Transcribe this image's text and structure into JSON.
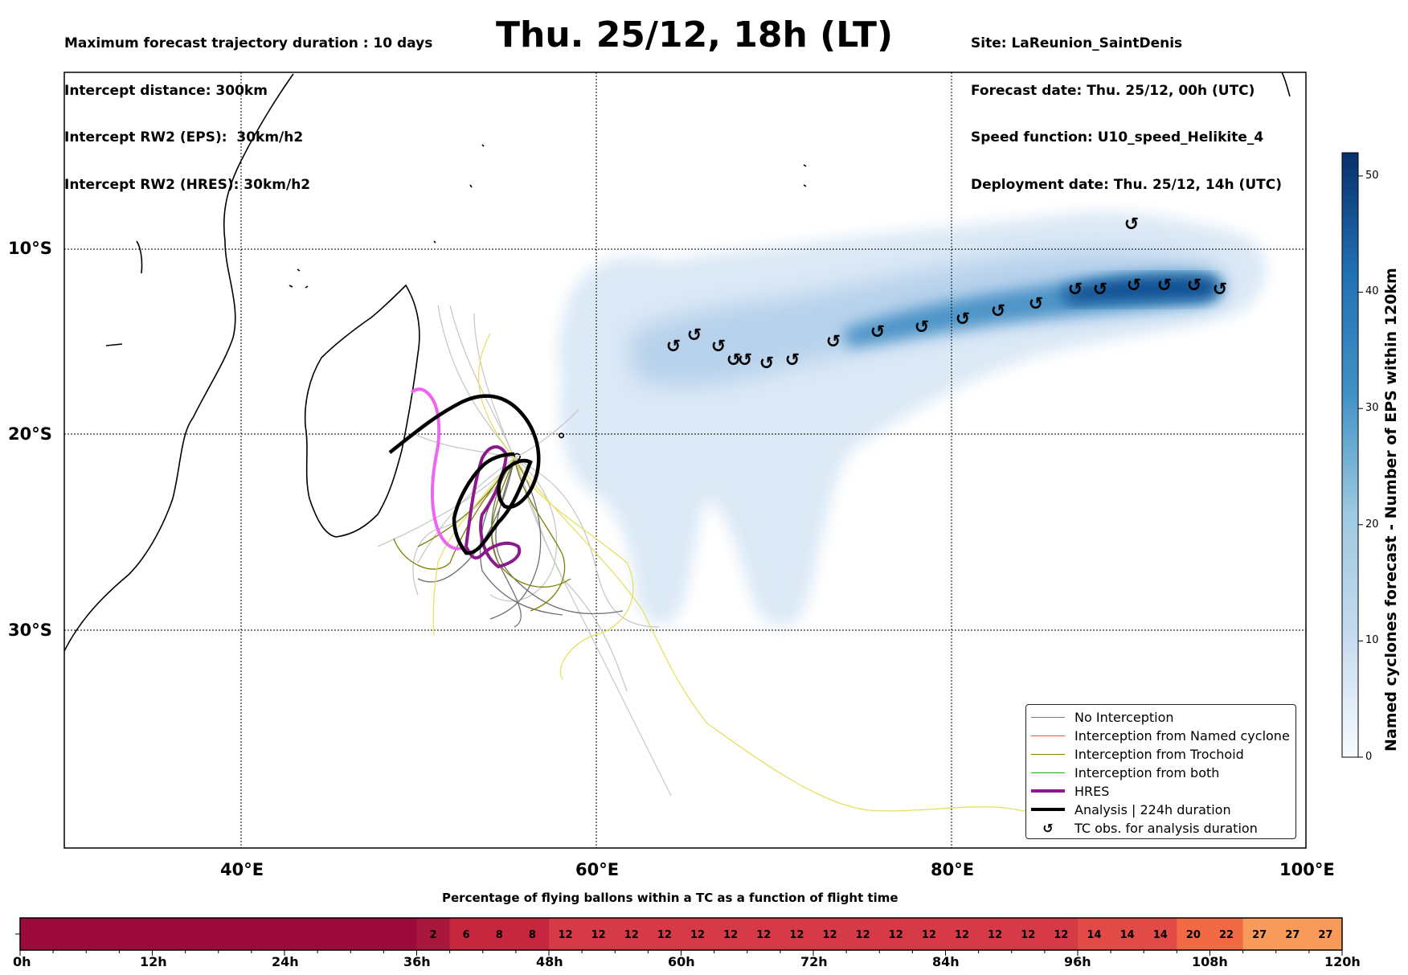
{
  "header": {
    "left_lines": [
      "Maximum forecast trajectory duration : 10 days",
      "Intercept distance: 300km",
      "Intercept RW2 (EPS):  30km/h2",
      "Intercept RW2 (HRES): 30km/h2"
    ],
    "title": "Thu. 25/12, 18h (LT)",
    "right_lines": [
      "Site: LaReunion_SaintDenis",
      "Forecast date: Thu. 25/12, 00h (UTC)",
      "Speed function: U10_speed_Helikite_4",
      "Deployment date: Thu. 25/12, 14h (UTC)"
    ]
  },
  "map": {
    "lat_labels": [
      "10°S",
      "20°S",
      "30°S"
    ],
    "lon_labels": [
      "40°E",
      "60°E",
      "80°E",
      "100°E"
    ],
    "colors": {
      "no_interception": "#808080",
      "named_cyclone": "#ff5522",
      "trochoid": "#808000",
      "both": "#22aa22",
      "hres": "#8b1a8b",
      "hres_early": "#ee66ee",
      "analysis": "#000000",
      "density_light": "#dbe8f5",
      "density_dark": "#08306b"
    }
  },
  "legend": {
    "items": [
      {
        "label": "No Interception",
        "color": "#808080",
        "style": "thin"
      },
      {
        "label": "Interception from Named cyclone",
        "color": "#ff5522",
        "style": "thin"
      },
      {
        "label": "Interception from Trochoid",
        "color": "#808000",
        "style": "thin"
      },
      {
        "label": "Interception from both",
        "color": "#22aa22",
        "style": "thin"
      },
      {
        "label": "HRES",
        "color": "#8b1a8b",
        "style": "thick"
      },
      {
        "label": "Analysis | 224h duration",
        "color": "#000000",
        "style": "thick"
      },
      {
        "label": "TC obs. for analysis duration",
        "color": "#000000",
        "style": "symbol",
        "symbol": "↺"
      }
    ]
  },
  "colorbar": {
    "title": "Named cyclones forecast - Number of EPS within 120km",
    "ticks": [
      "0",
      "10",
      "20",
      "30",
      "40",
      "50"
    ],
    "max": 52
  },
  "timeline": {
    "title": "Percentage of flying ballons within a TC as a function of flight time",
    "tick_labels": [
      "0h",
      "12h",
      "24h",
      "36h",
      "48h",
      "60h",
      "72h",
      "84h",
      "96h",
      "108h",
      "120h"
    ],
    "cell_values": [
      "",
      "",
      "",
      "",
      "",
      "",
      "",
      "",
      "",
      "",
      "",
      "",
      "2",
      "6",
      "8",
      "8",
      "12",
      "12",
      "12",
      "12",
      "12",
      "12",
      "12",
      "12",
      "12",
      "12",
      "12",
      "12",
      "12",
      "12",
      "12",
      "12",
      "14",
      "14",
      "14",
      "20",
      "22",
      "27",
      "27",
      "27"
    ]
  }
}
